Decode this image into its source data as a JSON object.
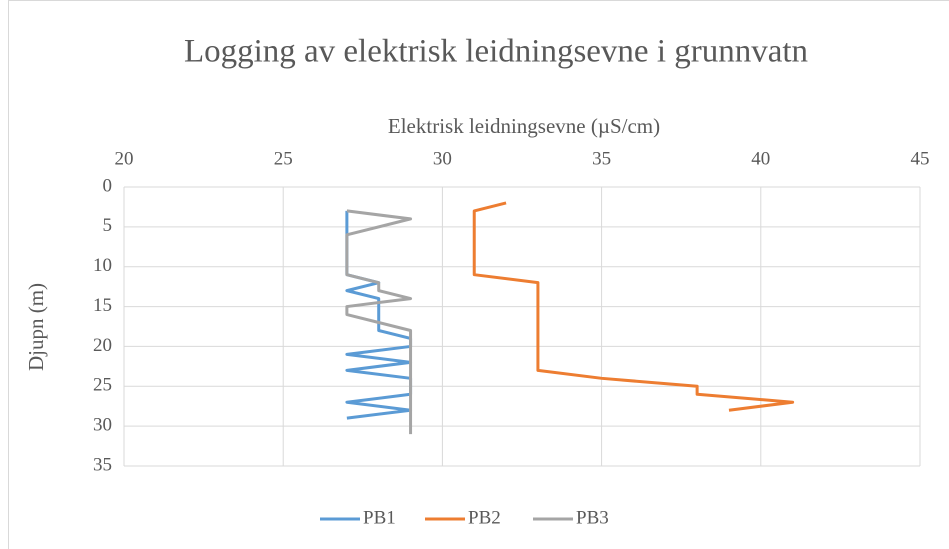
{
  "chart_data": {
    "type": "line",
    "title": "Logging av elektrisk leidningsevne i grunnvatn",
    "x_label": "Elektrisk leidningsevne (µS/cm)",
    "y_label": "Djupn (m)",
    "xlim": [
      20,
      45
    ],
    "xticks": [
      20,
      25,
      30,
      35,
      40,
      45
    ],
    "ylim": [
      0,
      35
    ],
    "yticks": [
      0,
      5,
      10,
      15,
      20,
      25,
      30,
      35
    ],
    "y_inverted": true,
    "x_axis_top": true,
    "grid": true,
    "legend": "bottom",
    "series": [
      {
        "name": "PB1",
        "color": "#5b9bd5",
        "x": [
          27,
          27,
          28,
          27,
          28,
          28,
          29,
          29,
          27,
          29,
          27,
          29,
          29,
          27,
          29,
          27
        ],
        "values": [
          3,
          11,
          12,
          13,
          14,
          18,
          19,
          20,
          21,
          22,
          23,
          24,
          26,
          27,
          28,
          29
        ]
      },
      {
        "name": "PB2",
        "color": "#ed7d31",
        "x": [
          32,
          31,
          31,
          33,
          33,
          35,
          38,
          38,
          41,
          39
        ],
        "values": [
          2,
          3,
          11,
          12,
          23,
          24,
          25,
          26,
          27,
          28
        ]
      },
      {
        "name": "PB3",
        "color": "#a5a5a5",
        "x": [
          27,
          29,
          27,
          27,
          28,
          28,
          29,
          27,
          27,
          28,
          29,
          29
        ],
        "values": [
          3,
          4,
          6,
          11,
          12,
          13,
          14,
          15,
          16,
          17,
          18,
          31
        ]
      }
    ]
  }
}
